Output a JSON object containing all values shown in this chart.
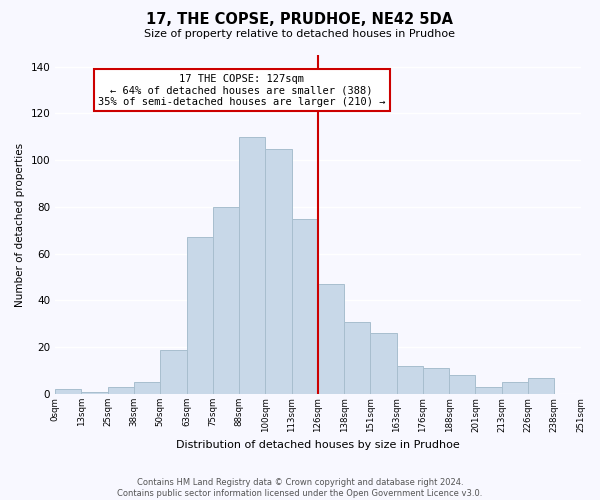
{
  "title": "17, THE COPSE, PRUDHOE, NE42 5DA",
  "subtitle": "Size of property relative to detached houses in Prudhoe",
  "xlabel": "Distribution of detached houses by size in Prudhoe",
  "ylabel": "Number of detached properties",
  "footer_line1": "Contains HM Land Registry data © Crown copyright and database right 2024.",
  "footer_line2": "Contains public sector information licensed under the Open Government Licence v3.0.",
  "bin_edges": [
    "0sqm",
    "13sqm",
    "25sqm",
    "38sqm",
    "50sqm",
    "63sqm",
    "75sqm",
    "88sqm",
    "100sqm",
    "113sqm",
    "126sqm",
    "138sqm",
    "151sqm",
    "163sqm",
    "176sqm",
    "188sqm",
    "201sqm",
    "213sqm",
    "226sqm",
    "238sqm",
    "251sqm"
  ],
  "bar_heights": [
    2,
    1,
    3,
    5,
    19,
    67,
    80,
    110,
    105,
    75,
    47,
    31,
    26,
    12,
    11,
    8,
    3,
    5,
    7,
    0
  ],
  "bar_color": "#c8d8e8",
  "bar_edge_color": "#a8bece",
  "annotation_title": "17 THE COPSE: 127sqm",
  "annotation_line1": "← 64% of detached houses are smaller (388)",
  "annotation_line2": "35% of semi-detached houses are larger (210) →",
  "vline_color": "#cc0000",
  "annotation_box_edge_color": "#cc0000",
  "ylim": [
    0,
    145
  ],
  "background_color": "#f8f8ff"
}
